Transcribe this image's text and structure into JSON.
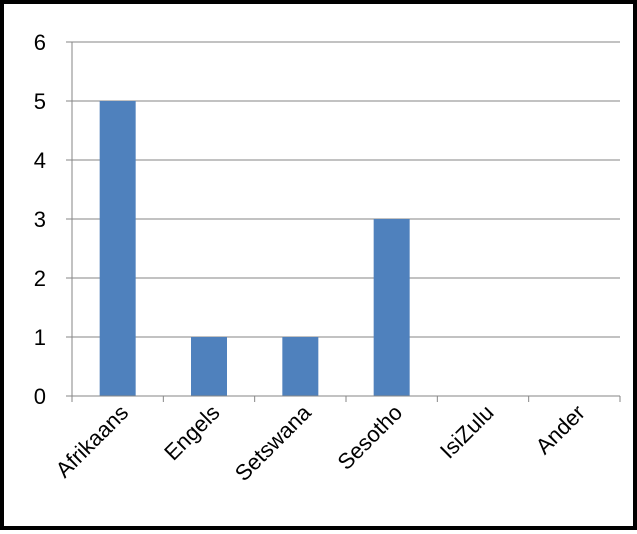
{
  "chart_data": {
    "type": "bar",
    "categories": [
      "Afrikaans",
      "Engels",
      "Setswana",
      "Sesotho",
      "IsiZulu",
      "Ander"
    ],
    "values": [
      5,
      1,
      1,
      3,
      0,
      0
    ],
    "ylim": [
      0,
      6
    ],
    "yticks": [
      0,
      1,
      2,
      3,
      4,
      5,
      6
    ],
    "grid": true,
    "legend": "none",
    "colors": {
      "bar": "#4f81bd",
      "grid": "#868686",
      "axis": "#868686",
      "frame": "#000000"
    }
  }
}
